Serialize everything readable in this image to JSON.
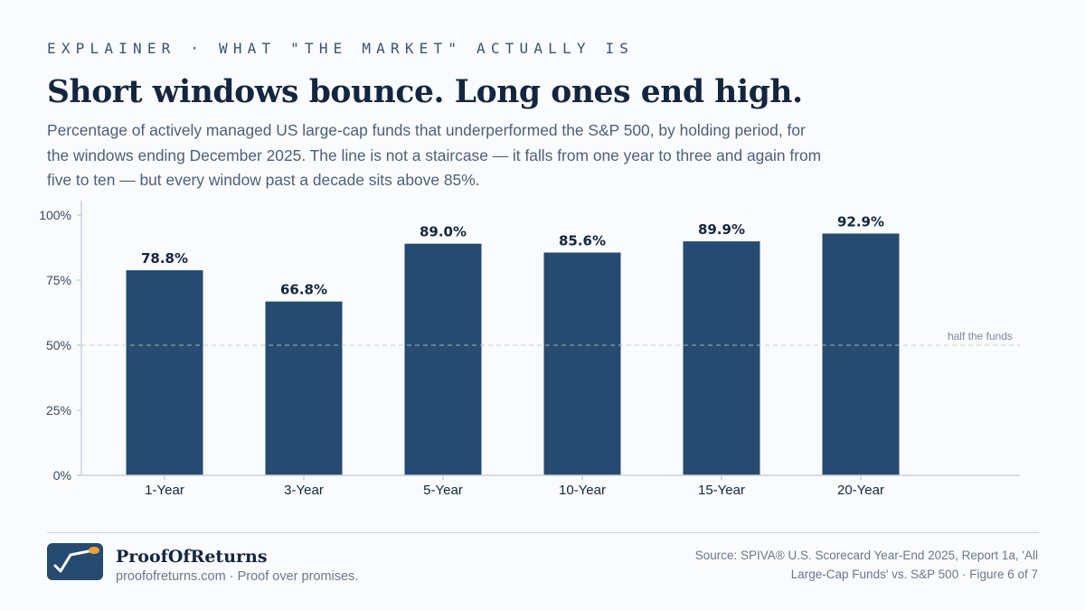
{
  "header": {
    "kicker": "EXPLAINER · WHAT \"THE MARKET\" ACTUALLY IS",
    "title": "Short windows bounce. Long ones end high.",
    "subtitle": "Percentage of actively managed US large-cap funds that underperformed the S&P 500, by holding period, for the windows ending December 2025. The line is not a staircase — it falls from one year to three and again from five to ten — but every window past a decade sits above 85%."
  },
  "chart_data": {
    "type": "bar",
    "categories": [
      "1-Year",
      "3-Year",
      "5-Year",
      "10-Year",
      "15-Year",
      "20-Year"
    ],
    "values": [
      78.8,
      66.8,
      89.0,
      85.6,
      89.9,
      92.9
    ],
    "value_labels": [
      "78.8%",
      "66.8%",
      "89.0%",
      "85.6%",
      "89.9%",
      "92.9%"
    ],
    "y_ticks": [
      0,
      25,
      50,
      75,
      100
    ],
    "y_tick_labels": [
      "0%",
      "25%",
      "50%",
      "75%",
      "100%"
    ],
    "ylim": [
      0,
      100
    ],
    "reference_line": {
      "value": 50,
      "label": "half the funds"
    },
    "bar_color": "#264a70",
    "grid": false
  },
  "footer": {
    "brand": "ProofOfReturns",
    "tagline": "proofofreturns.com · Proof over promises.",
    "source": "Source: SPIVA® U.S. Scorecard Year-End 2025, Report 1a, 'All Large-Cap Funds' vs. S&P 500 · Figure 6 of 7"
  },
  "colors": {
    "accent": "#264a70",
    "logo_dot": "#e9a23b"
  }
}
